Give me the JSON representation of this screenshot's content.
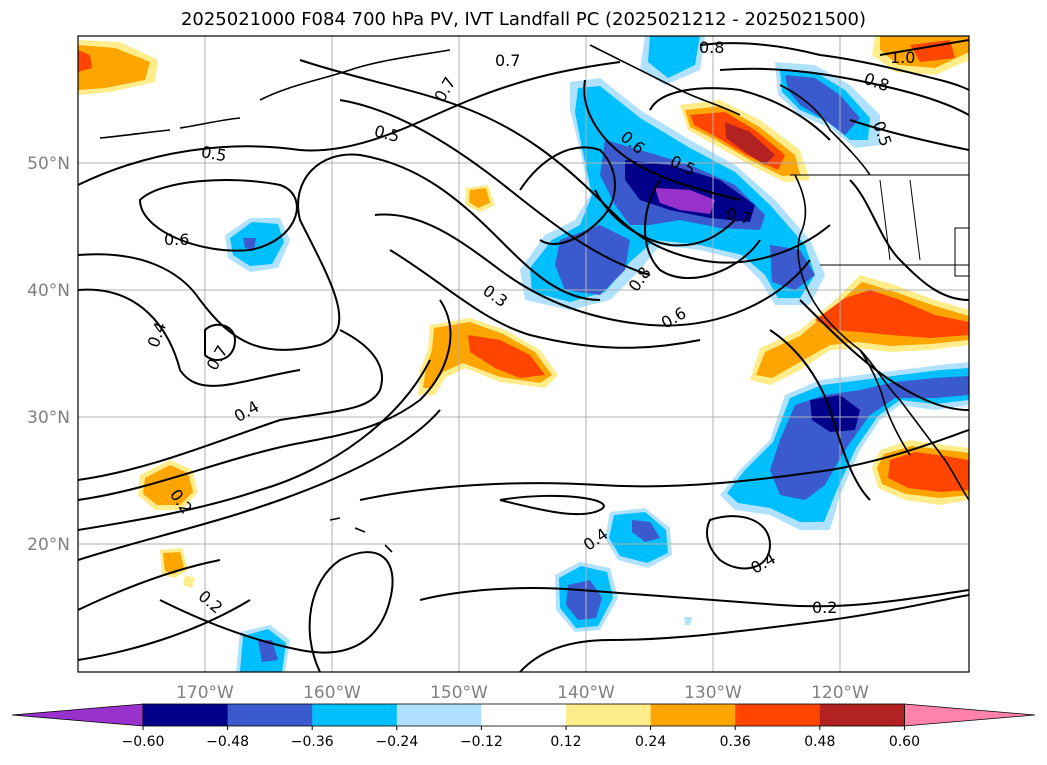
{
  "title": "2025021000 F084 700 hPa PV, IVT Landfall PC (2025021212 - 2025021500)",
  "lon_labels": [
    "170°W",
    "160°W",
    "150°W",
    "140°W",
    "130°W",
    "120°W"
  ],
  "lat_labels": [
    "50°N",
    "40°N",
    "30°N",
    "20°N"
  ],
  "colorbar": {
    "ticks": [
      "−0.60",
      "−0.48",
      "−0.36",
      "−0.24",
      "−0.12",
      "0.12",
      "0.24",
      "0.36",
      "0.48",
      "0.60"
    ],
    "colors": [
      "#9932cc",
      "#00008b",
      "#3a5acd",
      "#00bfff",
      "#b0e2ff",
      "#ffffff",
      "#ffec8b",
      "#ffa500",
      "#ff4500",
      "#b22222",
      "#ff82ab"
    ]
  },
  "contour_labels": [
    "0.7",
    "0.8",
    "1.0",
    "0.7",
    "0.8",
    "0.5",
    "0.5",
    "0.5",
    "0.6",
    "0.5",
    "0.7",
    "0.6",
    "0.8",
    "0.6",
    "0.3",
    "0.4",
    "0.7",
    "0.4",
    "0.2",
    "0.4",
    "0.4",
    "0.2",
    "0.2"
  ]
}
